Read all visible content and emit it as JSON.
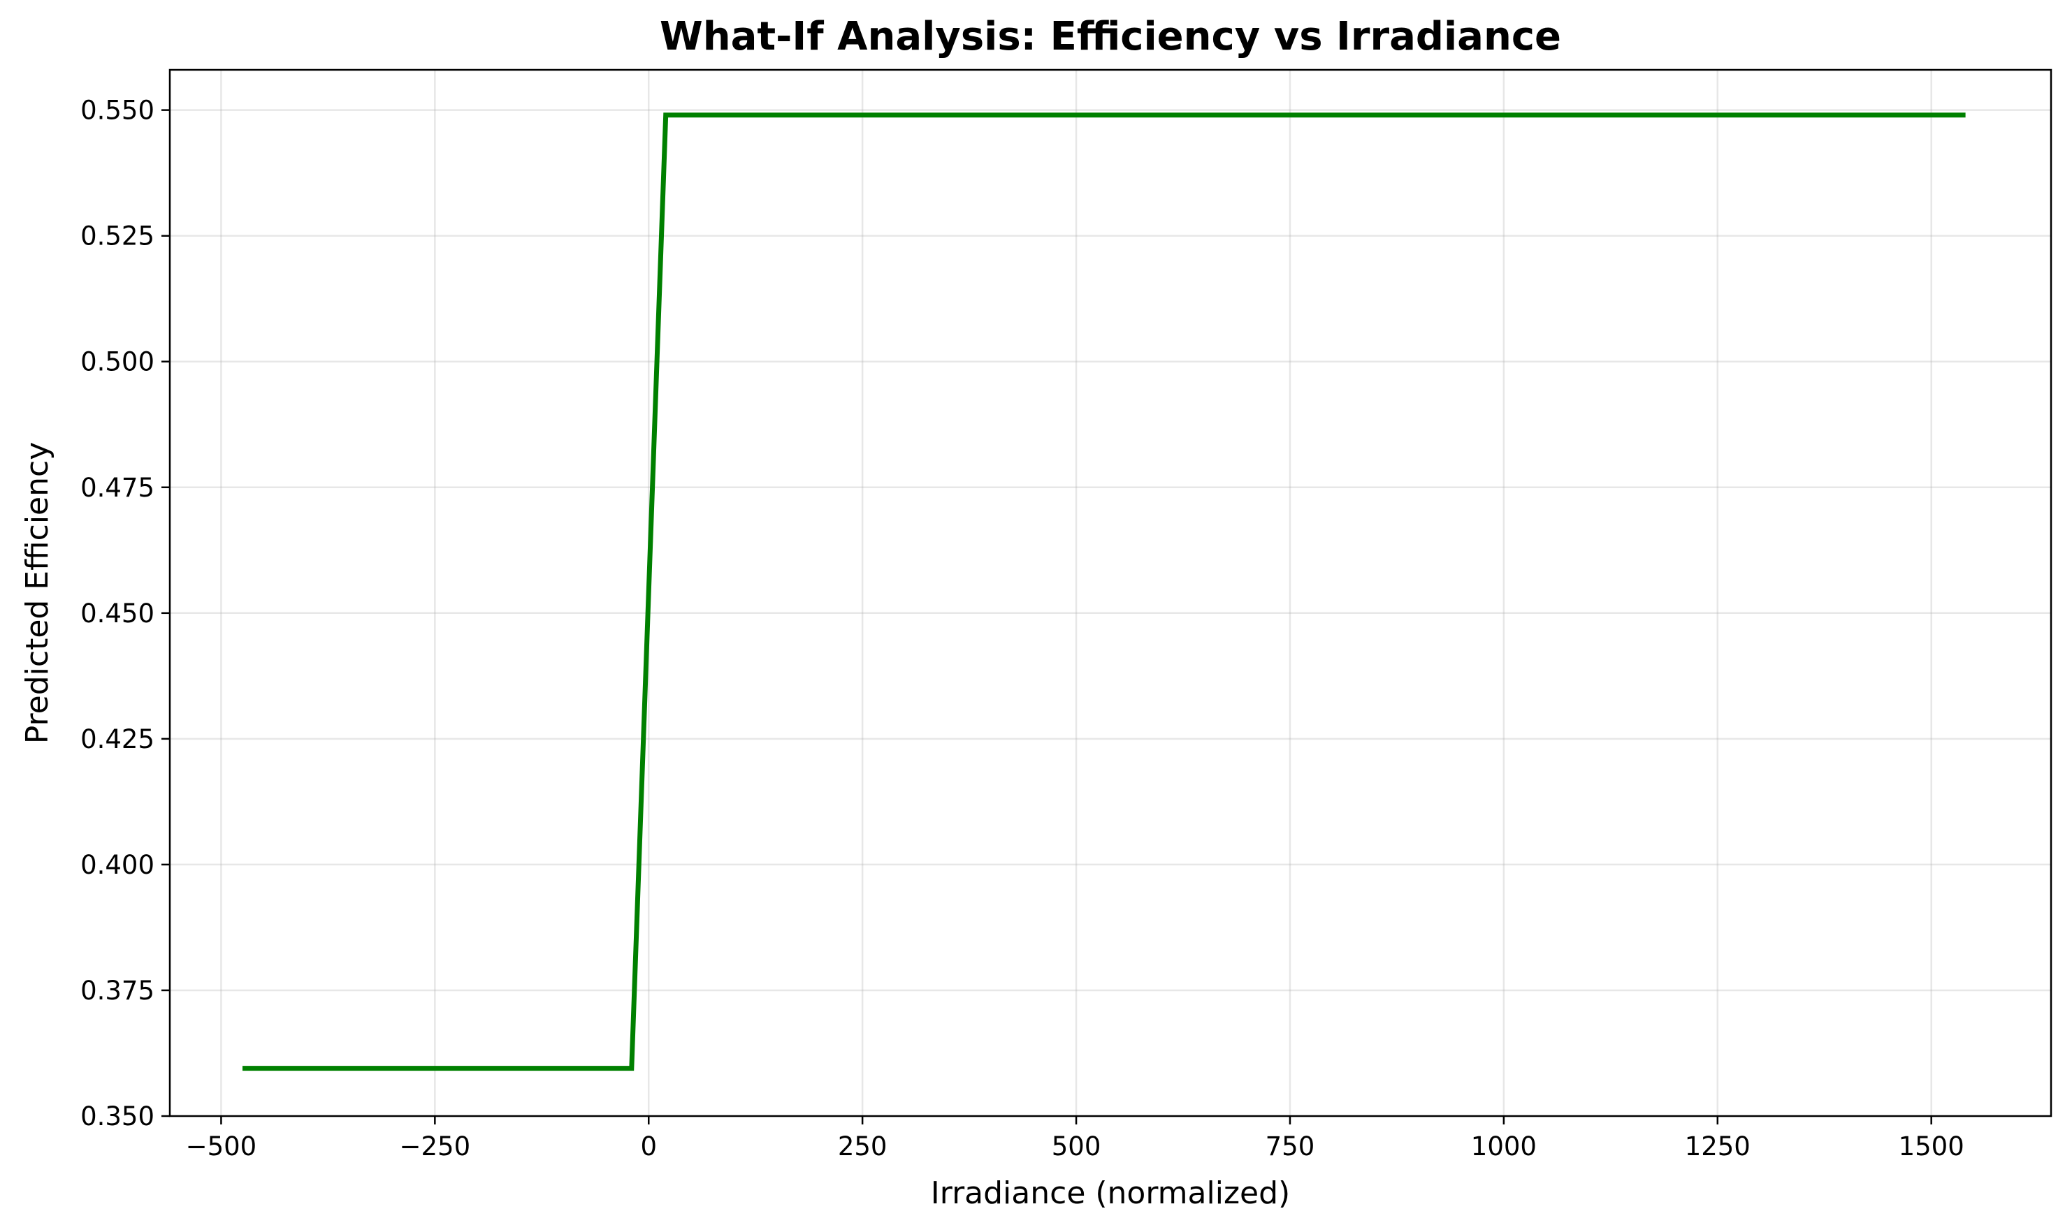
{
  "chart_data": {
    "type": "line",
    "title": "What-If Analysis: Efficiency vs Irradiance",
    "xlabel": "Irradiance (normalized)",
    "ylabel": "Predicted Efficiency",
    "xlim": [
      -560,
      1640
    ],
    "ylim": [
      0.35,
      0.558
    ],
    "xticks": [
      -500,
      -250,
      0,
      250,
      500,
      750,
      1000,
      1250,
      1500
    ],
    "xtick_labels": [
      "−500",
      "−250",
      "0",
      "250",
      "500",
      "750",
      "1000",
      "1250",
      "1500"
    ],
    "yticks": [
      0.35,
      0.375,
      0.4,
      0.425,
      0.45,
      0.475,
      0.5,
      0.525,
      0.55
    ],
    "ytick_labels": [
      "0.350",
      "0.375",
      "0.400",
      "0.425",
      "0.450",
      "0.475",
      "0.500",
      "0.525",
      "0.550"
    ],
    "grid": true,
    "line_color": "#008000",
    "series": [
      {
        "x": [
          -475,
          -20,
          20,
          1540
        ],
        "y": [
          0.3595,
          0.3595,
          0.549,
          0.549
        ]
      }
    ]
  }
}
